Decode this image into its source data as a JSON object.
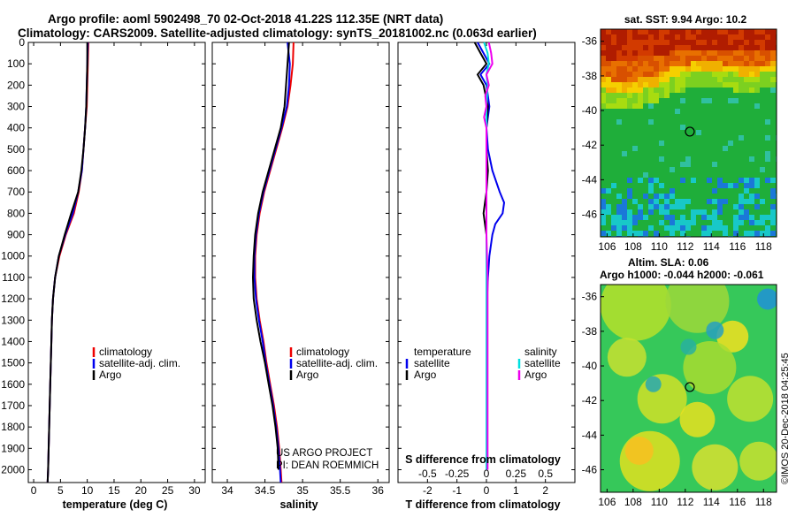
{
  "header": {
    "title_line1": "Argo profile: aoml 5902498_70 02-Oct-2018 41.22S 112.35E (NRT data)",
    "title_line2": "Climatology: CARS2009. Satellite-adjusted climatology: synTS_20181002.nc (0.063d earlier)"
  },
  "depth_axis": {
    "ticks": [
      0,
      100,
      200,
      300,
      400,
      500,
      600,
      700,
      800,
      900,
      1000,
      1100,
      1200,
      1300,
      1400,
      1500,
      1600,
      1700,
      1800,
      1900,
      2000
    ],
    "ylim": [
      0,
      2060
    ],
    "labels": [
      "0",
      "100",
      "200",
      "300",
      "400",
      "500",
      "600",
      "700",
      "800",
      "900",
      "1000",
      "1100",
      "1200",
      "1300",
      "1400",
      "1500",
      "1600",
      "1700",
      "1800",
      "1900",
      "2000"
    ]
  },
  "colors": {
    "climatology": "#ee0000",
    "satellite": "#0000ee",
    "argo": "#000000",
    "salinity_satellite": "#00e0e0",
    "salinity_argo": "#ee00ee"
  },
  "chart_data": [
    {
      "type": "line",
      "name": "temperature",
      "xlabel": "temperature (deg C)",
      "xlim": [
        -1,
        32
      ],
      "xticks": [
        0,
        5,
        10,
        15,
        20,
        25,
        30
      ],
      "xtick_labels": [
        "0",
        "5",
        "10",
        "15",
        "20",
        "25",
        "30"
      ],
      "legend": [
        "climatology",
        "satellite-adj. clim.",
        "Argo"
      ],
      "series": [
        {
          "name": "climatology",
          "depth": [
            0,
            100,
            200,
            300,
            400,
            500,
            600,
            700,
            800,
            900,
            1000,
            1100,
            1200,
            1300,
            1400,
            1600,
            1800,
            2000,
            2060
          ],
          "values": [
            10.2,
            10.1,
            10.0,
            9.9,
            9.6,
            9.3,
            9.0,
            8.4,
            7.5,
            6.0,
            4.8,
            4.0,
            3.6,
            3.4,
            3.3,
            3.1,
            2.9,
            2.7,
            2.6
          ]
        },
        {
          "name": "satellite-adj. clim.",
          "depth": [
            0,
            100,
            200,
            300,
            400,
            500,
            600,
            700,
            800,
            900,
            1000,
            1100,
            1200,
            1300,
            1400,
            1600,
            1800,
            2000,
            2060
          ],
          "values": [
            10.1,
            10.0,
            9.9,
            9.8,
            9.6,
            9.3,
            9.0,
            8.3,
            7.3,
            5.9,
            4.7,
            4.0,
            3.6,
            3.4,
            3.3,
            3.1,
            2.9,
            2.7,
            2.6
          ]
        },
        {
          "name": "Argo",
          "depth": [
            0,
            100,
            200,
            300,
            400,
            500,
            600,
            700,
            800,
            900,
            1000,
            1100,
            1200,
            1300,
            1400,
            1600,
            1800,
            2000,
            2060
          ],
          "values": [
            10.0,
            10.0,
            9.9,
            9.8,
            9.6,
            9.3,
            8.9,
            8.3,
            7.0,
            5.8,
            4.7,
            4.0,
            3.6,
            3.4,
            3.3,
            3.1,
            2.9,
            2.7,
            2.6
          ]
        }
      ]
    },
    {
      "type": "line",
      "name": "salinity",
      "xlabel": "salinity",
      "xlim": [
        33.8,
        36.15
      ],
      "xticks": [
        34,
        34.5,
        35,
        35.5,
        36
      ],
      "xtick_labels": [
        "34",
        "34.5",
        "35",
        "35.5",
        "36"
      ],
      "legend": [
        "climatology",
        "satellite-adj. clim.",
        "Argo"
      ],
      "series": [
        {
          "name": "climatology",
          "depth": [
            0,
            100,
            200,
            300,
            400,
            500,
            600,
            700,
            800,
            900,
            1000,
            1100,
            1200,
            1300,
            1400,
            1500,
            1600,
            1700,
            1800,
            1900,
            2000,
            2060
          ],
          "values": [
            34.88,
            34.87,
            34.84,
            34.8,
            34.73,
            34.65,
            34.57,
            34.49,
            34.43,
            34.39,
            34.37,
            34.37,
            34.39,
            34.43,
            34.48,
            34.52,
            34.57,
            34.62,
            34.66,
            34.69,
            34.71,
            34.72
          ]
        },
        {
          "name": "satellite-adj. clim.",
          "depth": [
            0,
            100,
            200,
            300,
            400,
            500,
            600,
            700,
            800,
            900,
            1000,
            1100,
            1200,
            1300,
            1400,
            1500,
            1600,
            1700,
            1800,
            1900,
            2000,
            2060
          ],
          "values": [
            34.8,
            34.83,
            34.82,
            34.79,
            34.72,
            34.64,
            34.56,
            34.48,
            34.42,
            34.38,
            34.36,
            34.36,
            34.38,
            34.42,
            34.47,
            34.51,
            34.56,
            34.61,
            34.65,
            34.68,
            34.7,
            34.71
          ]
        },
        {
          "name": "Argo",
          "depth": [
            0,
            100,
            200,
            300,
            400,
            500,
            600,
            700,
            800,
            900,
            1000,
            1100,
            1200,
            1300,
            1400,
            1500,
            1600,
            1700,
            1800,
            1900,
            2000
          ],
          "values": [
            34.82,
            34.8,
            34.78,
            34.76,
            34.71,
            34.63,
            34.55,
            34.47,
            34.41,
            34.37,
            34.35,
            34.34,
            34.35,
            34.39,
            34.44,
            34.5,
            34.55,
            34.6,
            34.64,
            34.67,
            34.68
          ]
        }
      ]
    },
    {
      "type": "line",
      "name": "difference",
      "xlabel": "T difference from climatology",
      "xlabel_top": "S difference from climatology",
      "xlim": [
        -3.0,
        3.0
      ],
      "xticks": [
        -2,
        -1,
        0,
        1,
        2
      ],
      "xtick_labels": [
        "-2",
        "-1",
        "0",
        "1",
        "2"
      ],
      "s_ticks": [
        -0.5,
        -0.25,
        0,
        0.25,
        0.5
      ],
      "s_tick_labels": [
        "-0.5",
        "-0.25",
        "0",
        "0.25",
        "0.5"
      ],
      "legend_temperature": {
        "title": "temperature",
        "items": [
          "satellite",
          "Argo"
        ]
      },
      "legend_salinity": {
        "title": "salinity",
        "items": [
          "satellite",
          "Argo"
        ]
      },
      "series": [
        {
          "name": "T satellite",
          "depth": [
            0,
            50,
            100,
            150,
            200,
            300,
            400,
            500,
            600,
            700,
            750,
            800,
            850,
            900,
            1000,
            1100,
            1200,
            1400,
            1600,
            1800,
            2000
          ],
          "values": [
            -0.3,
            -0.1,
            0.1,
            -0.2,
            0.0,
            0.1,
            0.0,
            0.05,
            0.2,
            0.45,
            0.6,
            0.55,
            0.3,
            0.2,
            0.1,
            0.05,
            0.02,
            0.0,
            0.0,
            0.0,
            0.0
          ]
        },
        {
          "name": "T Argo",
          "depth": [
            0,
            50,
            100,
            150,
            200,
            300,
            400,
            500,
            600,
            700,
            800,
            900,
            1000,
            1200,
            1400,
            1600,
            1800,
            2000
          ],
          "values": [
            -0.4,
            -0.2,
            0.0,
            -0.3,
            -0.1,
            0.05,
            0.0,
            0.0,
            0.05,
            0.0,
            -0.1,
            0.0,
            0.0,
            0.0,
            0.0,
            0.0,
            0.0,
            0.0
          ]
        },
        {
          "name": "S satellite",
          "depth": [
            0,
            50,
            100,
            150,
            200,
            300,
            400,
            500,
            700,
            900,
            1100,
            1300,
            1500,
            1700,
            1900,
            2000
          ],
          "values": [
            -0.02,
            0.01,
            0.02,
            0.0,
            0.01,
            0.0,
            0.0,
            0.0,
            0.0,
            0.0,
            0.0,
            0.0,
            0.0,
            0.0,
            0.0,
            0.0
          ]
        },
        {
          "name": "S Argo",
          "depth": [
            0,
            50,
            100,
            150,
            200,
            250,
            300,
            350,
            400,
            500,
            700,
            900,
            1100,
            1300,
            1500,
            1700,
            1900,
            2000
          ],
          "values": [
            0.02,
            0.04,
            0.05,
            0.0,
            0.02,
            -0.01,
            0.0,
            -0.02,
            0.0,
            0.0,
            0.0,
            0.0,
            0.01,
            0.01,
            0.01,
            0.01,
            0.01,
            0.01
          ]
        }
      ]
    },
    {
      "type": "heatmap",
      "name": "sst-map",
      "title": "sat. SST: 9.94 Argo: 10.2",
      "xticks": [
        106,
        108,
        110,
        112,
        114,
        116,
        118
      ],
      "xtick_labels": [
        "106",
        "108",
        "110",
        "112",
        "114",
        "116",
        "118"
      ],
      "yticks": [
        -36,
        -38,
        -40,
        -42,
        -44,
        -46
      ],
      "ytick_labels": [
        "-36",
        "-38",
        "-40",
        "-42",
        "-44",
        "-46"
      ],
      "xlim": [
        105.5,
        119
      ],
      "ylim": [
        -47.3,
        -35.3
      ],
      "marker": {
        "lon": 112.35,
        "lat": -41.22
      }
    },
    {
      "type": "heatmap",
      "name": "sla-map",
      "title_line1": "Altim. SLA: 0.06",
      "title_line2": "Argo h1000: -0.044 h2000: -0.061",
      "xticks": [
        106,
        108,
        110,
        112,
        114,
        116,
        118
      ],
      "xtick_labels": [
        "106",
        "108",
        "110",
        "112",
        "114",
        "116",
        "118"
      ],
      "yticks": [
        -36,
        -38,
        -40,
        -42,
        -44,
        -46
      ],
      "ytick_labels": [
        "-36",
        "-38",
        "-40",
        "-42",
        "-44",
        "-46"
      ],
      "xlim": [
        105.5,
        119
      ],
      "ylim": [
        -47.3,
        -35.3
      ],
      "marker": {
        "lon": 112.35,
        "lat": -41.22
      }
    }
  ],
  "credits": {
    "project_line1": "US ARGO PROJECT",
    "project_line2": "PI: DEAN ROEMMICH",
    "watermark": "©IMOS 20-Dec-2018 04:25:45"
  }
}
